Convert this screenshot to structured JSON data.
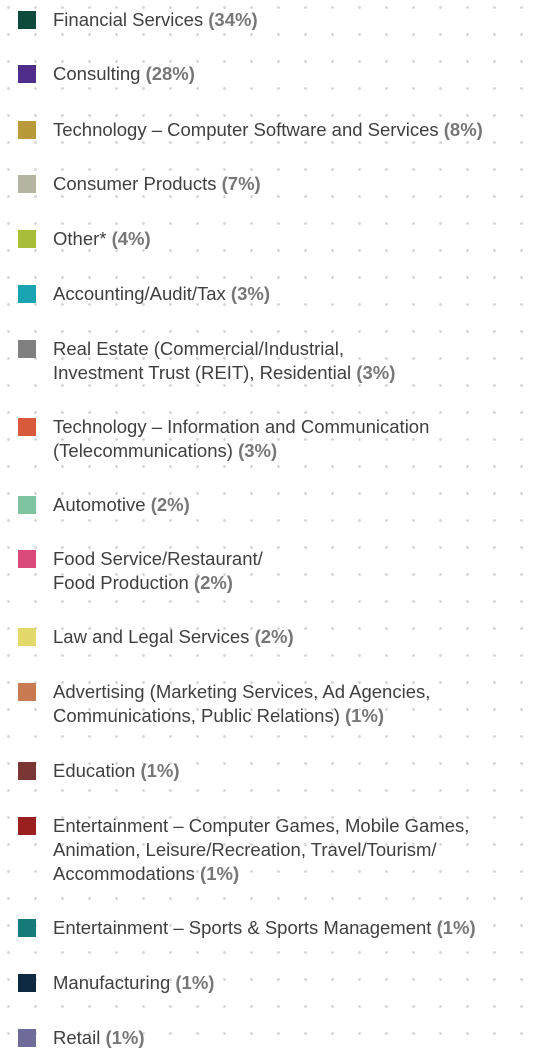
{
  "items": [
    {
      "lines": [
        "Financial Services"
      ],
      "percent": "(34%)",
      "color": "#0e4a3c"
    },
    {
      "lines": [
        "Consulting"
      ],
      "percent": "(28%)",
      "color": "#4f2d8a"
    },
    {
      "lines": [
        "Technology – Computer Software and Services"
      ],
      "percent": "(8%)",
      "color": "#b89a3a"
    },
    {
      "lines": [
        "Consumer Products"
      ],
      "percent": "(7%)",
      "color": "#b5b3a2"
    },
    {
      "lines": [
        "Other*"
      ],
      "percent": "(4%)",
      "color": "#a8bd3a"
    },
    {
      "lines": [
        "Accounting/Audit/Tax"
      ],
      "percent": "(3%)",
      "color": "#1aa3b0"
    },
    {
      "lines": [
        "Real Estate (Commercial/Industrial,",
        "Investment Trust (REIT), Residential"
      ],
      "percent": "(3%)",
      "color": "#808080"
    },
    {
      "lines": [
        "Technology – Information and Communication",
        "(Telecommunications)"
      ],
      "percent": "(3%)",
      "color": "#d85a3c"
    },
    {
      "lines": [
        "Automotive"
      ],
      "percent": "(2%)",
      "color": "#7fc4a0"
    },
    {
      "lines": [
        "Food Service/Restaurant/",
        "Food Production"
      ],
      "percent": "(2%)",
      "color": "#d94a7a"
    },
    {
      "lines": [
        "Law and Legal Services"
      ],
      "percent": "(2%)",
      "color": "#e3d86a"
    },
    {
      "lines": [
        "Advertising (Marketing Services, Ad Agencies,",
        "Communications, Public Relations)"
      ],
      "percent": "(1%)",
      "color": "#c97a50"
    },
    {
      "lines": [
        "Education"
      ],
      "percent": "(1%)",
      "color": "#7a3535"
    },
    {
      "lines": [
        "Entertainment – Computer Games, Mobile Games,",
        "Animation, Leisure/Recreation, Travel/Tourism/",
        "Accommodations"
      ],
      "percent": "(1%)",
      "color": "#9a2020"
    },
    {
      "lines": [
        "Entertainment – Sports & Sports Management"
      ],
      "percent": "(1%)",
      "color": "#157a78"
    },
    {
      "lines": [
        "Manufacturing"
      ],
      "percent": "(1%)",
      "color": "#0e2a40"
    },
    {
      "lines": [
        "Retail"
      ],
      "percent": "(1%)",
      "color": "#6e6a9a"
    }
  ]
}
